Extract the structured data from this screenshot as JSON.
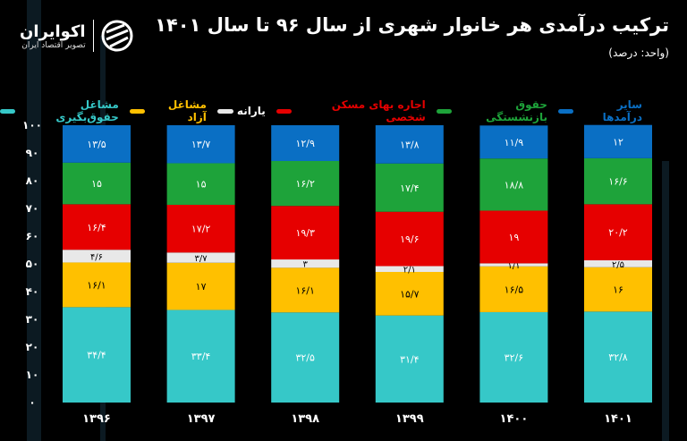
{
  "header": {
    "title": "ترکیب درآمدی هر خانوار شهری از سال ۹۶ تا سال ۱۴۰۱",
    "unit": "(واحد: درصد)"
  },
  "logo": {
    "brand": "اکوایران",
    "tagline": "تصویر اقتصاد ایران"
  },
  "chart_data": {
    "type": "bar",
    "stacked": true,
    "title": "ترکیب درآمدی هر خانوار شهری از سال ۹۶ تا سال ۱۴۰۱",
    "ylabel": "(واحد: درصد)",
    "ylim": [
      0,
      100
    ],
    "yticks": [
      0,
      10,
      20,
      30,
      40,
      50,
      60,
      70,
      80,
      90,
      100
    ],
    "categories": [
      "1396",
      "1397",
      "1398",
      "1399",
      "1400",
      "1401"
    ],
    "legend_position": "top",
    "series": [
      {
        "name": "مشاغل حقوق‌بگیری",
        "color": "#36c8c8",
        "values": [
          34.4,
          33.4,
          32.5,
          31.4,
          32.6,
          32.8
        ]
      },
      {
        "name": "مشاغل آزاد",
        "color": "#ffc000",
        "values": [
          16.1,
          17,
          16.1,
          15.7,
          16.5,
          16
        ]
      },
      {
        "name": "یارانه",
        "color": "#e8e8e8",
        "values": [
          4.6,
          3.7,
          3.0,
          2.1,
          1.1,
          2.5
        ]
      },
      {
        "name": "اجاره بهای مسکن شخصی",
        "color": "#e60000",
        "values": [
          16.4,
          17.2,
          19.3,
          19.6,
          19.0,
          20.2
        ]
      },
      {
        "name": "حقوق بازنشستگی",
        "color": "#1ea33a",
        "values": [
          15.0,
          15.0,
          16.2,
          17.4,
          18.8,
          16.6
        ]
      },
      {
        "name": "سایر درآمدها",
        "color": "#0a6fc4",
        "values": [
          13.5,
          13.7,
          12.9,
          13.8,
          11.9,
          12.0
        ]
      }
    ]
  }
}
